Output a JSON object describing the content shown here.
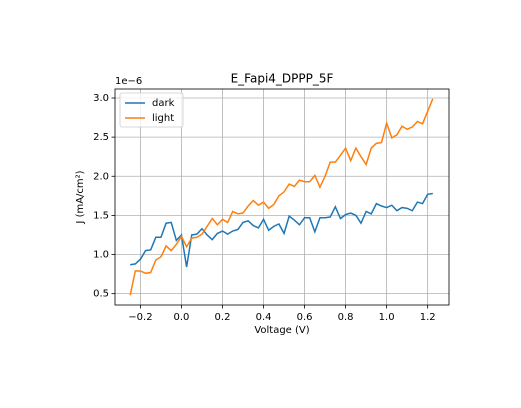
{
  "chart_data": {
    "type": "line",
    "title": "E_Fapi4_DPPP_5F",
    "x_label": "Voltage (V)",
    "y_label": "J (mA/cm²)",
    "y_offset_label": "1e−6",
    "x": [
      -0.25,
      -0.225,
      -0.2,
      -0.175,
      -0.15,
      -0.125,
      -0.1,
      -0.075,
      -0.05,
      -0.025,
      0.0,
      0.025,
      0.05,
      0.075,
      0.1,
      0.125,
      0.15,
      0.175,
      0.2,
      0.225,
      0.25,
      0.275,
      0.3,
      0.325,
      0.35,
      0.375,
      0.4,
      0.425,
      0.45,
      0.475,
      0.5,
      0.525,
      0.55,
      0.575,
      0.6,
      0.625,
      0.65,
      0.675,
      0.7,
      0.725,
      0.75,
      0.775,
      0.8,
      0.825,
      0.85,
      0.875,
      0.9,
      0.925,
      0.95,
      0.975,
      1.0,
      1.025,
      1.05,
      1.075,
      1.1,
      1.125,
      1.15,
      1.175,
      1.2,
      1.225
    ],
    "series": [
      {
        "name": "dark",
        "color": "#1f77b4",
        "values": [
          0.87,
          0.88,
          0.94,
          1.05,
          1.06,
          1.22,
          1.22,
          1.4,
          1.41,
          1.18,
          1.25,
          0.84,
          1.25,
          1.26,
          1.33,
          1.25,
          1.19,
          1.27,
          1.3,
          1.26,
          1.3,
          1.32,
          1.41,
          1.43,
          1.37,
          1.34,
          1.45,
          1.31,
          1.36,
          1.39,
          1.27,
          1.49,
          1.44,
          1.38,
          1.47,
          1.47,
          1.29,
          1.47,
          1.47,
          1.48,
          1.61,
          1.46,
          1.51,
          1.53,
          1.5,
          1.4,
          1.55,
          1.52,
          1.65,
          1.62,
          1.6,
          1.63,
          1.56,
          1.6,
          1.59,
          1.56,
          1.67,
          1.65,
          1.77,
          1.78
        ]
      },
      {
        "name": "light",
        "color": "#ff7f0e",
        "values": [
          0.48,
          0.79,
          0.79,
          0.76,
          0.77,
          0.93,
          0.97,
          1.11,
          1.05,
          1.13,
          1.23,
          1.1,
          1.21,
          1.22,
          1.26,
          1.36,
          1.46,
          1.38,
          1.45,
          1.41,
          1.55,
          1.52,
          1.53,
          1.62,
          1.69,
          1.63,
          1.67,
          1.59,
          1.64,
          1.75,
          1.8,
          1.9,
          1.87,
          1.95,
          1.93,
          1.93,
          2.01,
          1.86,
          2.0,
          2.18,
          2.18,
          2.27,
          2.36,
          2.2,
          2.36,
          2.25,
          2.15,
          2.36,
          2.42,
          2.43,
          2.68,
          2.49,
          2.53,
          2.64,
          2.6,
          2.63,
          2.7,
          2.67,
          2.83,
          2.99
        ]
      }
    ],
    "xlim": [
      -0.324,
      1.304
    ],
    "xticks": [
      {
        "value": -0.2,
        "label": "−0.2"
      },
      {
        "value": 0,
        "label": "0.0"
      },
      0.2,
      0.4,
      0.6,
      0.8,
      {
        "value": 1,
        "label": "1.0"
      },
      1.2
    ],
    "ylim": [
      0.355,
      3.115
    ],
    "yticks": [
      0.5,
      {
        "value": 1,
        "label": "1.0"
      },
      1.5,
      {
        "value": 2,
        "label": "2.0"
      },
      2.5,
      {
        "value": 3,
        "label": "3.0"
      }
    ],
    "grid": true,
    "legend": "upper left"
  }
}
